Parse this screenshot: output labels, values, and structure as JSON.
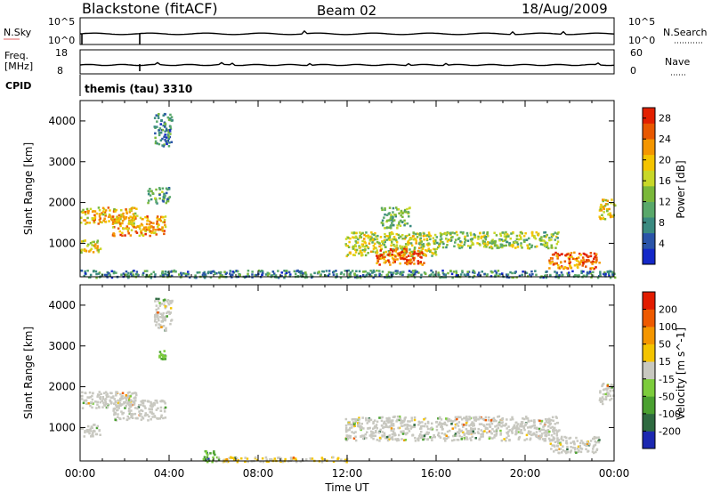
{
  "header": {
    "station": "Blackstone (fitACF)",
    "beam": "Beam 02",
    "date": "18/Aug/2009"
  },
  "nsky_panel": {
    "left_label": "N.Sky",
    "left_ticks": [
      "10^5",
      "10^0"
    ],
    "right_label": "N.Search",
    "right_ticks": [
      "10^5",
      "10^0"
    ]
  },
  "freq_panel": {
    "left_label_1": "Freq.",
    "left_label_2": "[MHz]",
    "left_ticks": [
      "18",
      "8"
    ],
    "right_label": "Nave",
    "right_ticks": [
      "60",
      "0"
    ]
  },
  "cpid": {
    "label": "CPID",
    "value": "themis (tau) 3310"
  },
  "colors": {
    "background": "#ffffff",
    "line": "#000000",
    "no_data_gray": "#c8c8c0"
  },
  "chart_data": [
    {
      "type": "heatmap",
      "panel": "power",
      "ylabel": "Slant Range [km]",
      "xlabel": "",
      "ylim": [
        180,
        4500
      ],
      "yticks": [
        1000,
        2000,
        3000,
        4000
      ],
      "xlim": [
        0,
        24
      ],
      "colorbar": {
        "label": "Power [dB]",
        "tick_labels": [
          "4",
          "8",
          "12",
          "16",
          "20",
          "24",
          "28"
        ],
        "range": [
          0,
          30
        ],
        "colors": [
          "#1428c8",
          "#2a54a8",
          "#3a8a80",
          "#59a86a",
          "#7ab83a",
          "#c8d828",
          "#f4c400",
          "#f49600",
          "#e85800",
          "#e22000"
        ]
      },
      "regions": [
        {
          "t": [
            0.0,
            2.5
          ],
          "r": [
            1500,
            1900
          ],
          "value": 20
        },
        {
          "t": [
            0.0,
            0.9
          ],
          "r": [
            800,
            1100
          ],
          "value": 18
        },
        {
          "t": [
            1.4,
            3.8
          ],
          "r": [
            1200,
            1700
          ],
          "value": 22
        },
        {
          "t": [
            3.0,
            4.0
          ],
          "r": [
            2000,
            2400
          ],
          "value": 10
        },
        {
          "t": [
            3.3,
            4.1
          ],
          "r": [
            3400,
            4200
          ],
          "value": 8
        },
        {
          "t": [
            11.9,
            16.0
          ],
          "r": [
            700,
            1300
          ],
          "value": 16
        },
        {
          "t": [
            13.2,
            15.5
          ],
          "r": [
            500,
            900
          ],
          "value": 25
        },
        {
          "t": [
            16.0,
            21.5
          ],
          "r": [
            900,
            1300
          ],
          "value": 14
        },
        {
          "t": [
            21.0,
            23.3
          ],
          "r": [
            400,
            800
          ],
          "value": 24
        },
        {
          "t": [
            13.5,
            14.8
          ],
          "r": [
            1400,
            1900
          ],
          "value": 12
        },
        {
          "t": [
            23.3,
            24.0
          ],
          "r": [
            1600,
            2100
          ],
          "value": 18
        },
        {
          "t": [
            0.0,
            24.0
          ],
          "r": [
            180,
            360
          ],
          "value": 8
        }
      ]
    },
    {
      "type": "heatmap",
      "panel": "velocity",
      "ylabel": "Slant Range [km]",
      "xlabel": "Time UT",
      "ylim": [
        180,
        4500
      ],
      "yticks": [
        1000,
        2000,
        3000,
        4000
      ],
      "xlim": [
        0,
        24
      ],
      "xtick_labels": [
        "00:00",
        "04:00",
        "08:00",
        "12:00",
        "16:00",
        "20:00",
        "00:00"
      ],
      "colorbar": {
        "label": "Velocity [m s^-1]",
        "tick_labels": [
          "200",
          "100",
          "50",
          "15",
          "-15",
          "-50",
          "-100",
          "-200"
        ],
        "range": [
          -250,
          250
        ],
        "colors": [
          "#1c28b0",
          "#2e6a40",
          "#4aa030",
          "#7ccc3c",
          "#c8c8c0",
          "#f4c400",
          "#f49600",
          "#ee5a00",
          "#e21c00"
        ]
      },
      "regions": [
        {
          "t": [
            0.0,
            2.5
          ],
          "r": [
            1500,
            1900
          ],
          "value": 0
        },
        {
          "t": [
            0.0,
            0.9
          ],
          "r": [
            800,
            1100
          ],
          "value": 0
        },
        {
          "t": [
            1.4,
            3.8
          ],
          "r": [
            1200,
            1700
          ],
          "value": 0
        },
        {
          "t": [
            3.3,
            4.1
          ],
          "r": [
            3400,
            4200
          ],
          "value": 0
        },
        {
          "t": [
            3.5,
            3.8
          ],
          "r": [
            2700,
            2900
          ],
          "value": -80
        },
        {
          "t": [
            11.9,
            21.5
          ],
          "r": [
            700,
            1300
          ],
          "value": 0
        },
        {
          "t": [
            21.0,
            23.3
          ],
          "r": [
            400,
            800
          ],
          "value": 0
        },
        {
          "t": [
            23.3,
            24.0
          ],
          "r": [
            1600,
            2100
          ],
          "value": 0
        },
        {
          "t": [
            5.5,
            6.2
          ],
          "r": [
            180,
            450
          ],
          "value": -80
        },
        {
          "t": [
            6.0,
            12.0
          ],
          "r": [
            180,
            300
          ],
          "value": 30
        }
      ]
    }
  ]
}
